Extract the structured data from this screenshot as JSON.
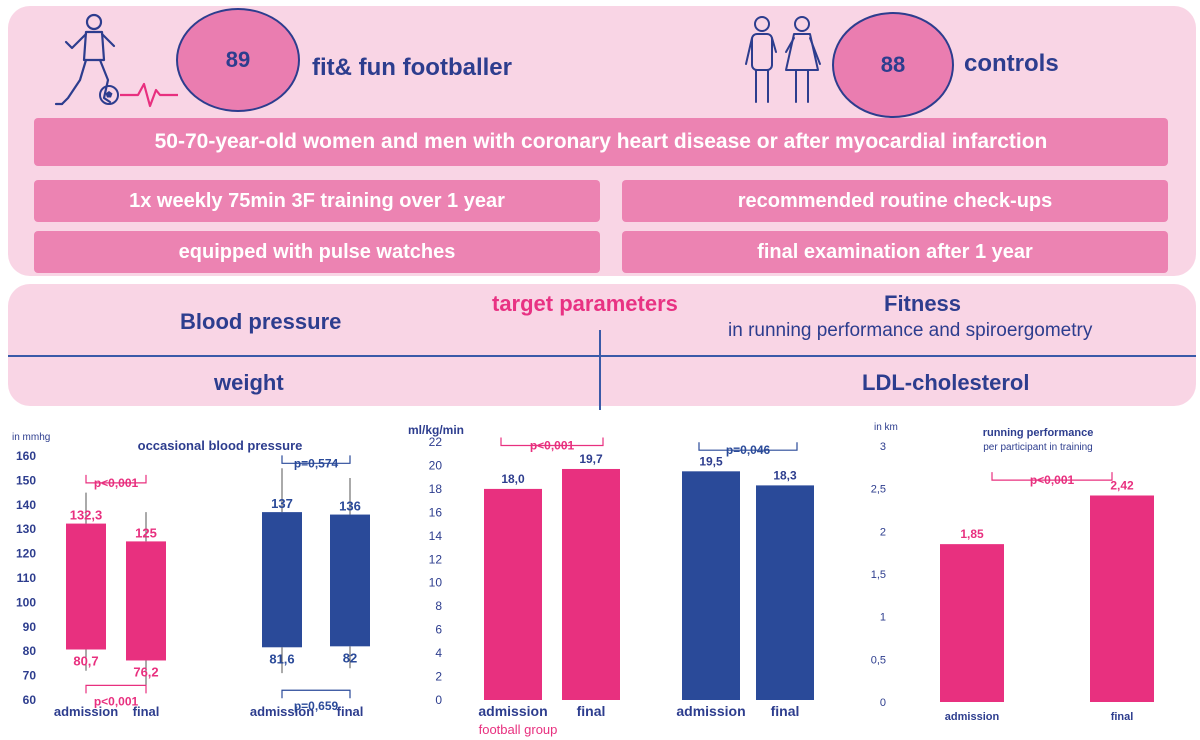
{
  "header": {
    "football_count": "89",
    "football_label": "fit& fun footballer",
    "control_count": "88",
    "control_label": "controls",
    "population": "50-70-year-old women and men with coronary heart disease or after myocardial infarction",
    "training": "1x weekly 75min 3F training over 1 year",
    "pulse": "equipped with pulse watches",
    "checkups": "recommended routine check-ups",
    "final_exam": "final examination after 1 year"
  },
  "targets": {
    "title": "target parameters",
    "blood_pressure": "Blood pressure",
    "fitness": "Fitness",
    "fitness_sub": "in running performance and spiroergometry",
    "weight": "weight",
    "ldl": "LDL-cholesterol"
  },
  "colors": {
    "pink": "#e8307f",
    "navy": "#2a4a99",
    "panel": "#f9d5e5",
    "text_navy": "#2d3d8e"
  },
  "icons": [
    "footballer-icon",
    "ball-icon",
    "heartbeat-icon",
    "couple-icon"
  ],
  "chart_data": [
    {
      "type": "bar",
      "title": "occasional blood pressure",
      "ylabel": "in mmhg",
      "ylim": [
        60,
        160
      ],
      "yticks": [
        "60",
        "70",
        "80",
        "90",
        "100",
        "110",
        "120",
        "130",
        "140",
        "150",
        "160"
      ],
      "categories": [
        "admission",
        "final",
        "admission",
        "final"
      ],
      "bars": [
        {
          "group": "football",
          "top": 132.3,
          "bottom": 80.7,
          "top_label": "132,3",
          "bottom_label": "80,7",
          "color": "#e8307f",
          "err_top": 145,
          "err_bottom": 72
        },
        {
          "group": "football",
          "top": 125,
          "bottom": 76.2,
          "top_label": "125",
          "bottom_label": "76,2",
          "color": "#e8307f",
          "err_top": 137,
          "err_bottom": 65
        },
        {
          "group": "control",
          "top": 137,
          "bottom": 81.6,
          "top_label": "137",
          "bottom_label": "81,6",
          "color": "#2a4a99",
          "err_top": 155,
          "err_bottom": 71
        },
        {
          "group": "control",
          "top": 136,
          "bottom": 82,
          "top_label": "136",
          "bottom_label": "82",
          "color": "#2a4a99",
          "err_top": 151,
          "err_bottom": 73
        }
      ],
      "pvalues": [
        {
          "label": "p<0,001",
          "pair": [
            0,
            1
          ],
          "at": 149,
          "color": "#e8307f"
        },
        {
          "label": "p<0,001",
          "pair": [
            0,
            1
          ],
          "at": 66,
          "color": "#e8307f",
          "below": true
        },
        {
          "label": "p=0,574",
          "pair": [
            2,
            3
          ],
          "at": 157,
          "color": "#2a4a99"
        },
        {
          "label": "p=0,659",
          "pair": [
            2,
            3
          ],
          "at": 64,
          "color": "#2a4a99",
          "below": true
        }
      ]
    },
    {
      "type": "bar",
      "ylabel": "ml/kg/min",
      "ylim": [
        0,
        22
      ],
      "yticks": [
        "0",
        "2",
        "4",
        "6",
        "8",
        "10",
        "12",
        "14",
        "16",
        "18",
        "20",
        "22"
      ],
      "categories": [
        "admission",
        "final",
        "admission",
        "final"
      ],
      "values": [
        18.0,
        19.7,
        19.5,
        18.3
      ],
      "labels": [
        "18,0",
        "19,7",
        "19,5",
        "18,3"
      ],
      "colors": [
        "#e8307f",
        "#e8307f",
        "#2a4a99",
        "#2a4a99"
      ],
      "group_label": "football group",
      "pvalues": [
        {
          "label": "p<0,001",
          "pair": [
            0,
            1
          ],
          "at": 21.7,
          "color": "#e8307f"
        },
        {
          "label": "p=0,046",
          "pair": [
            2,
            3
          ],
          "at": 21.3,
          "color": "#2a4a99"
        }
      ]
    },
    {
      "type": "bar",
      "title": "running performance",
      "subtitle": "per participant in training",
      "ylabel": "in km",
      "ylim": [
        0,
        3
      ],
      "yticks": [
        "0",
        "0,5",
        "1",
        "1,5",
        "2",
        "2,5",
        "3"
      ],
      "categories": [
        "admission",
        "final"
      ],
      "values": [
        1.85,
        2.42
      ],
      "labels": [
        "1,85",
        "2,42"
      ],
      "colors": [
        "#e8307f",
        "#e8307f"
      ],
      "pvalues": [
        {
          "label": "p<0,001",
          "pair": [
            0,
            1
          ],
          "at": 2.6,
          "color": "#e8307f"
        }
      ]
    }
  ]
}
